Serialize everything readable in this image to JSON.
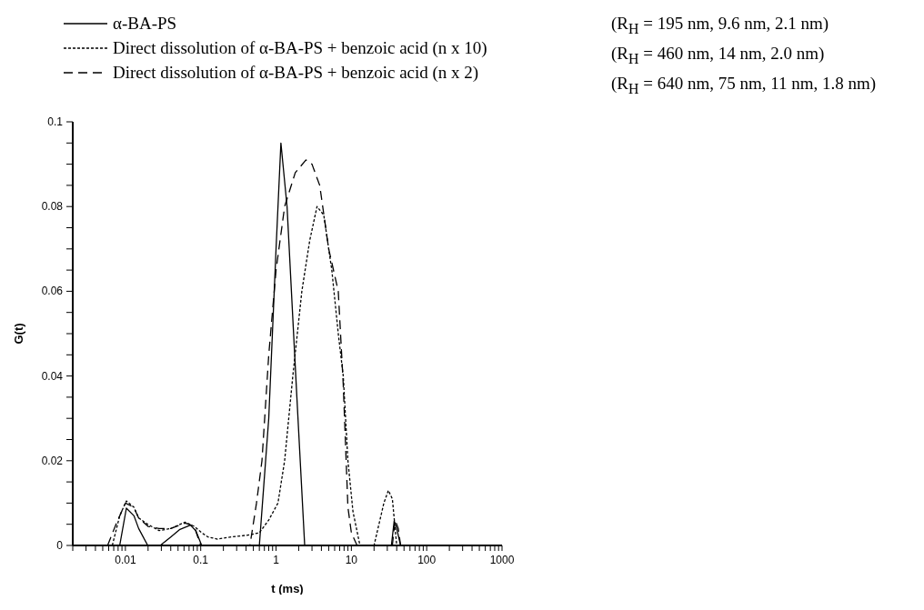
{
  "chart_data": {
    "type": "line",
    "xlabel": "t (ms)",
    "ylabel": "G(t)",
    "log": "x",
    "legend": "top left",
    "marker": "none",
    "xlim": [
      0.002,
      1000
    ],
    "xticks": [
      {
        "value": 0.002,
        "label": null
      },
      {
        "value": 0.003,
        "label": null
      },
      {
        "value": 0.004,
        "label": null
      },
      {
        "value": 0.005,
        "label": null
      },
      {
        "value": 0.006,
        "label": null
      },
      {
        "value": 0.007,
        "label": null
      },
      {
        "value": 0.008,
        "label": null
      },
      {
        "value": 0.009,
        "label": null
      },
      0.01,
      {
        "value": 0.02,
        "label": null
      },
      {
        "value": 0.03,
        "label": null
      },
      {
        "value": 0.04,
        "label": null
      },
      {
        "value": 0.05,
        "label": null
      },
      {
        "value": 0.06,
        "label": null
      },
      {
        "value": 0.07,
        "label": null
      },
      {
        "value": 0.08,
        "label": null
      },
      {
        "value": 0.09,
        "label": null
      },
      0.1,
      {
        "value": 0.2,
        "label": null
      },
      {
        "value": 0.3,
        "label": null
      },
      {
        "value": 0.4,
        "label": null
      },
      {
        "value": 0.5,
        "label": null
      },
      {
        "value": 0.6,
        "label": null
      },
      {
        "value": 0.7,
        "label": null
      },
      {
        "value": 0.8,
        "label": null
      },
      {
        "value": 0.9,
        "label": null
      },
      1,
      {
        "value": 2,
        "label": null
      },
      {
        "value": 3,
        "label": null
      },
      {
        "value": 4,
        "label": null
      },
      {
        "value": 5,
        "label": null
      },
      {
        "value": 6,
        "label": null
      },
      {
        "value": 7,
        "label": null
      },
      {
        "value": 8,
        "label": null
      },
      {
        "value": 9,
        "label": null
      },
      10,
      {
        "value": 20,
        "label": null
      },
      {
        "value": 30,
        "label": null
      },
      {
        "value": 40,
        "label": null
      },
      {
        "value": 50,
        "label": null
      },
      {
        "value": 60,
        "label": null
      },
      {
        "value": 70,
        "label": null
      },
      {
        "value": 80,
        "label": null
      },
      {
        "value": 90,
        "label": null
      },
      100,
      {
        "value": 200,
        "label": null
      },
      {
        "value": 300,
        "label": null
      },
      {
        "value": 400,
        "label": null
      },
      {
        "value": 500,
        "label": null
      },
      {
        "value": 600,
        "label": null
      },
      {
        "value": 700,
        "label": null
      },
      {
        "value": 800,
        "label": null
      },
      {
        "value": 900,
        "label": null
      },
      1000
    ],
    "ylim": [
      0,
      0.1
    ],
    "yticks": [
      0,
      {
        "value": 0.005,
        "label": null
      },
      {
        "value": 0.01,
        "label": null
      },
      {
        "value": 0.015,
        "label": null
      },
      0.02,
      {
        "value": 0.025,
        "label": null
      },
      {
        "value": 0.03,
        "label": null
      },
      {
        "value": 0.035,
        "label": null
      },
      0.04,
      {
        "value": 0.045,
        "label": null
      },
      {
        "value": 0.05,
        "label": null
      },
      {
        "value": 0.055,
        "label": null
      },
      0.06,
      {
        "value": 0.065,
        "label": null
      },
      {
        "value": 0.07,
        "label": null
      },
      {
        "value": 0.075,
        "label": null
      },
      0.08,
      {
        "value": 0.085,
        "label": null
      },
      {
        "value": 0.09,
        "label": null
      },
      {
        "value": 0.095,
        "label": null
      },
      0.1
    ],
    "annotations": [
      "(R$_{H}$ = 195 nm, 9.6 nm, 2.1 nm)",
      "(R$_{H}$ = 460 nm, 14 nm, 2.0 nm)",
      "(R$_{H}$ = 640 nm, 75 nm, 11 nm, 1.8 nm)"
    ],
    "series": [
      {
        "name": "α-BA-PS",
        "color": "#000000",
        "line_style": "solid",
        "x": [
          0.0084,
          0.0103,
          0.013,
          0.015,
          0.0198,
          0.029,
          0.04,
          0.053,
          0.073,
          0.086,
          0.103,
          0.6,
          0.8,
          1.0,
          1.16,
          1.4,
          1.89,
          2.4,
          34,
          37,
          40,
          45
        ],
        "values": [
          0,
          0.0088,
          0.007,
          0.004,
          0,
          0,
          0.002,
          0.0038,
          0.0048,
          0.0035,
          0,
          0,
          0.03,
          0.07,
          0.095,
          0.08,
          0.035,
          0,
          0,
          0.0058,
          0.004,
          0
        ]
      },
      {
        "name": "Direct dissolution of α-BA-PS + benzoic acid (n x 10)",
        "color": "#000000",
        "line_style": "dotted",
        "x": [
          0.0067,
          0.0084,
          0.0103,
          0.013,
          0.015,
          0.0198,
          0.028,
          0.04,
          0.062,
          0.082,
          0.103,
          0.125,
          0.167,
          0.255,
          0.45,
          0.6,
          0.8,
          1.06,
          1.3,
          1.67,
          2.2,
          2.8,
          3.5,
          4.3,
          5.5,
          6.7,
          7.8,
          9,
          10.5,
          13,
          20,
          27,
          31,
          35,
          40
        ],
        "values": [
          0,
          0.007,
          0.0105,
          0.009,
          0.0065,
          0.005,
          0.0035,
          0.004,
          0.0055,
          0.0045,
          0.003,
          0.002,
          0.0015,
          0.002,
          0.0025,
          0.003,
          0.006,
          0.01,
          0.02,
          0.04,
          0.06,
          0.072,
          0.08,
          0.078,
          0.065,
          0.05,
          0.04,
          0.02,
          0.008,
          0,
          0,
          0.01,
          0.013,
          0.011,
          0
        ]
      },
      {
        "name": "Direct dissolution of α-BA-PS + benzoic acid (n x 2)",
        "color": "#000000",
        "line_style": "dashed",
        "x": [
          0.0058,
          0.0075,
          0.01,
          0.0129,
          0.015,
          0.02,
          0.028,
          0.04,
          0.062,
          0.082,
          0.1,
          0.45,
          0.55,
          0.65,
          0.8,
          1.0,
          1.3,
          1.8,
          2.5,
          3.0,
          3.8,
          5,
          6.7,
          7.8,
          9,
          10,
          11.9,
          35,
          38,
          42,
          45
        ],
        "values": [
          0,
          0.005,
          0.01,
          0.009,
          0.0065,
          0.0045,
          0.004,
          0.004,
          0.0053,
          0.0045,
          0,
          0,
          0.01,
          0.02,
          0.045,
          0.065,
          0.08,
          0.088,
          0.091,
          0.09,
          0.085,
          0.07,
          0.06,
          0.038,
          0.009,
          0.003,
          0,
          0,
          0.006,
          0.004,
          0
        ]
      }
    ]
  }
}
